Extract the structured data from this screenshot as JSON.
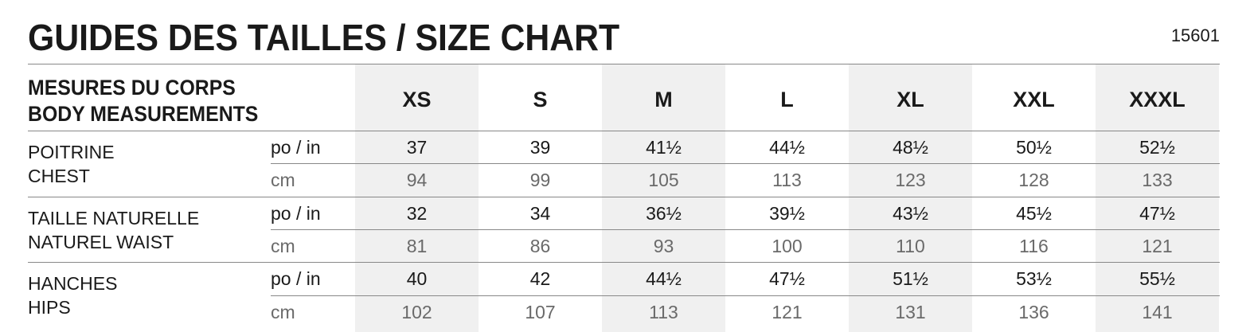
{
  "title": "GUIDES DES TAILLES / SIZE CHART",
  "product_code": "15601",
  "header": {
    "label_fr": "MESURES DU CORPS",
    "label_en": "BODY MEASUREMENTS",
    "sizes": [
      "XS",
      "S",
      "M",
      "L",
      "XL",
      "XXL",
      "XXXL"
    ]
  },
  "colors": {
    "shade": "#f0f0f0",
    "cm_text": "#6a6a6a"
  },
  "groups": [
    {
      "label_fr": "POITRINE",
      "label_en": "CHEST",
      "rows": [
        {
          "unit": "po / in",
          "values": [
            "37",
            "39",
            "41½",
            "44½",
            "48½",
            "50½",
            "52½"
          ]
        },
        {
          "unit": "cm",
          "values": [
            "94",
            "99",
            "105",
            "113",
            "123",
            "128",
            "133"
          ]
        }
      ]
    },
    {
      "label_fr": "TAILLE NATURELLE",
      "label_en": "NATUREL WAIST",
      "rows": [
        {
          "unit": "po / in",
          "values": [
            "32",
            "34",
            "36½",
            "39½",
            "43½",
            "45½",
            "47½"
          ]
        },
        {
          "unit": "cm",
          "values": [
            "81",
            "86",
            "93",
            "100",
            "110",
            "116",
            "121"
          ]
        }
      ]
    },
    {
      "label_fr": "HANCHES",
      "label_en": "HIPS",
      "rows": [
        {
          "unit": "po / in",
          "values": [
            "40",
            "42",
            "44½",
            "47½",
            "51½",
            "53½",
            "55½"
          ]
        },
        {
          "unit": "cm",
          "values": [
            "102",
            "107",
            "113",
            "121",
            "131",
            "136",
            "141"
          ]
        }
      ]
    }
  ]
}
